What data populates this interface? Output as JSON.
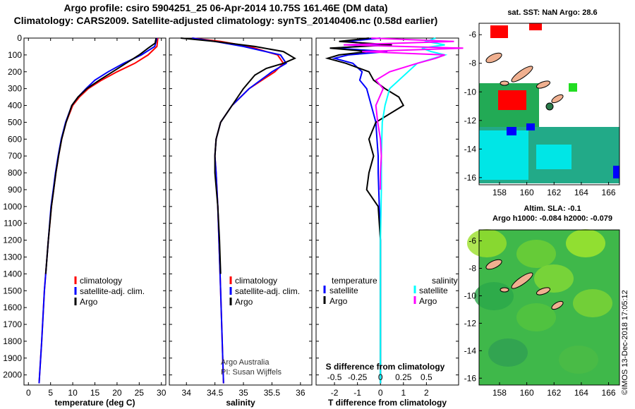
{
  "titles": {
    "line1": "Argo profile: csiro 5904251_25 06-Apr-2014 10.75S 161.46E (DM data)",
    "line2": "Climatology: CARS2009. Satellite-adjusted climatology: synTS_20140406.nc (0.58d earlier)"
  },
  "map_top": {
    "title": "sat. SST: NaN Argo: 28.6",
    "lat_ticks": [
      "-6",
      "-8",
      "-10",
      "-12",
      "-14",
      "-16"
    ],
    "lon_ticks": [
      "158",
      "160",
      "162",
      "164",
      "166"
    ]
  },
  "map_bottom": {
    "title1": "Altim. SLA: -0.1",
    "title2": "Argo h1000: -0.084 h2000: -0.079",
    "lat_ticks": [
      "-6",
      "-8",
      "-10",
      "-12",
      "-14",
      "-16"
    ],
    "lon_ticks": [
      "158",
      "160",
      "162",
      "164",
      "166"
    ]
  },
  "credit": "©IMOS 13-Dec-2018 17:05:12",
  "attribution": {
    "line1": "Argo Australia",
    "line2": "PI: Susan Wijffels"
  },
  "colors": {
    "climatology": "#ff0000",
    "satellite": "#0000ff",
    "argo": "#000000",
    "satellite_salinity": "#00ffff",
    "argo_salinity": "#ff00ff"
  },
  "chart_data": [
    {
      "type": "line",
      "xlabel": "temperature (deg C)",
      "ylabel": "",
      "xlim": [
        -1,
        31
      ],
      "ylim": [
        2060,
        0
      ],
      "x_ticks": [
        "0",
        "5",
        "10",
        "15",
        "20",
        "25",
        "30"
      ],
      "y_ticks": [
        "0",
        "100",
        "200",
        "300",
        "400",
        "500",
        "600",
        "700",
        "800",
        "900",
        "1000",
        "1100",
        "1200",
        "1300",
        "1400",
        "1500",
        "1600",
        "1700",
        "1800",
        "1900",
        "2000"
      ],
      "legend": [
        "climatology",
        "satellite-adj. clim.",
        "Argo"
      ],
      "series": [
        {
          "name": "climatology",
          "depth": [
            0,
            50,
            100,
            150,
            200,
            250,
            300,
            350,
            400,
            500,
            600,
            700,
            800,
            900,
            1000,
            1200,
            1500,
            1800,
            2050
          ],
          "values": [
            29.2,
            29,
            27,
            24,
            20,
            16.5,
            13.5,
            11.5,
            10,
            8.5,
            7.5,
            6.8,
            6.2,
            5.7,
            5.2,
            4.5,
            3.6,
            3,
            2.4
          ]
        },
        {
          "name": "satellite-adj. clim.",
          "depth": [
            0,
            50,
            100,
            150,
            200,
            250,
            300,
            350,
            400,
            500,
            600,
            700,
            800,
            900,
            1000,
            1200,
            1500,
            1800,
            2050
          ],
          "values": [
            29,
            28.5,
            25.5,
            21.5,
            18,
            15,
            13,
            11.2,
            9.8,
            8.4,
            7.4,
            6.7,
            6.1,
            5.6,
            5.1,
            4.5,
            3.6,
            3,
            2.4
          ]
        },
        {
          "name": "Argo",
          "depth": [
            0,
            30,
            60,
            100,
            150,
            200,
            250,
            300,
            350,
            400,
            500,
            600,
            700,
            800,
            900,
            1000,
            1200,
            1400
          ],
          "values": [
            28.8,
            28.6,
            27,
            25,
            22,
            19,
            16,
            13.2,
            11.2,
            9.8,
            8.5,
            7.5,
            6.8,
            6.2,
            5.7,
            5.2,
            4.5,
            3.9
          ]
        }
      ]
    },
    {
      "type": "line",
      "xlabel": "salinity",
      "ylabel": "",
      "xlim": [
        33.7,
        36.2
      ],
      "ylim": [
        2060,
        0
      ],
      "x_ticks": [
        "34",
        "34.5",
        "35",
        "35.5",
        "36"
      ],
      "legend": [
        "climatology",
        "satellite-adj. clim.",
        "Argo"
      ],
      "series": [
        {
          "name": "climatology",
          "depth": [
            0,
            20,
            50,
            100,
            150,
            200,
            300,
            400,
            500,
            600,
            700,
            800,
            1000,
            1500,
            2050
          ],
          "values": [
            34.1,
            34.6,
            35.1,
            35.6,
            35.7,
            35.55,
            35.1,
            34.8,
            34.6,
            34.52,
            34.5,
            34.52,
            34.55,
            34.6,
            34.65
          ]
        },
        {
          "name": "satellite-adj. clim.",
          "depth": [
            0,
            20,
            50,
            100,
            150,
            200,
            300,
            400,
            500,
            600,
            700,
            800,
            1000,
            1500,
            2050
          ],
          "values": [
            34.1,
            34.5,
            35.0,
            35.65,
            35.75,
            35.5,
            35.1,
            34.8,
            34.6,
            34.52,
            34.5,
            34.52,
            34.55,
            34.6,
            34.65
          ]
        },
        {
          "name": "Argo",
          "depth": [
            0,
            20,
            50,
            80,
            120,
            150,
            180,
            220,
            300,
            400,
            500,
            600,
            700,
            800,
            1000,
            1200,
            1400
          ],
          "values": [
            33.9,
            34.5,
            35.2,
            35.7,
            35.9,
            35.7,
            35.4,
            35.2,
            35.0,
            34.8,
            34.6,
            34.52,
            34.5,
            34.5,
            34.55,
            34.58,
            34.6
          ]
        }
      ]
    },
    {
      "type": "line",
      "xlabel": "T difference from climatology",
      "x2label": "S difference from climatology",
      "xlim": [
        -2.8,
        3.4
      ],
      "ylim": [
        2060,
        0
      ],
      "x_ticks": [
        "-2",
        "-1",
        "0",
        "1",
        "2"
      ],
      "x2_ticks": [
        "-0.5",
        "-0.25",
        "0",
        "0.25",
        "0.5"
      ],
      "legend_left_title": "temperature",
      "legend_right_title": "salinity",
      "legend": [
        "satellite",
        "Argo",
        "satellite",
        "Argo"
      ],
      "series": [
        {
          "name": "satellite T",
          "depth": [
            0,
            20,
            40,
            60,
            80,
            100,
            120,
            150,
            200,
            250,
            300,
            400,
            500,
            600,
            700,
            800,
            1000,
            1200,
            1500,
            2050
          ],
          "values": [
            0,
            -1.5,
            0,
            -2,
            0.3,
            -1.4,
            -2,
            -1.2,
            -0.8,
            -0.9,
            -0.6,
            -0.4,
            -0.2,
            -0.15,
            -0.1,
            -0.1,
            -0.05,
            0,
            0,
            0
          ]
        },
        {
          "name": "Argo T",
          "depth": [
            0,
            20,
            40,
            60,
            80,
            100,
            120,
            150,
            200,
            250,
            300,
            350,
            400,
            500,
            600,
            700,
            800,
            900,
            1000,
            1200,
            1400,
            1600,
            1800,
            2050
          ],
          "values": [
            -0.5,
            -1.8,
            0.5,
            -2.2,
            -0.5,
            -1.8,
            -2.3,
            -1.5,
            -0.5,
            -0.3,
            0.2,
            0.8,
            1.0,
            -0.2,
            -0.5,
            -0.3,
            -0.5,
            -0.6,
            -0.1,
            0,
            0,
            0,
            0,
            0
          ]
        },
        {
          "name": "satellite S",
          "depth": [
            0,
            20,
            40,
            60,
            80,
            100,
            150,
            200,
            300,
            400,
            500,
            700,
            900,
            1200,
            1500,
            2050
          ],
          "values": [
            0.6,
            0.5,
            0.7,
            0.45,
            0.55,
            0.7,
            0.4,
            0.3,
            0.1,
            0.05,
            0.02,
            0.01,
            0.01,
            0,
            0,
            0
          ]
        },
        {
          "name": "Argo S",
          "depth": [
            0,
            20,
            40,
            60,
            80,
            100,
            120,
            150,
            200,
            250,
            300,
            400,
            500,
            600,
            700,
            800,
            900
          ],
          "values": [
            -0.1,
            0.8,
            -0.4,
            0.9,
            -0.2,
            0.7,
            0.6,
            0.4,
            0.1,
            -0.05,
            0.03,
            -0.05,
            -0.03,
            0,
            0.01,
            0,
            0
          ]
        }
      ]
    }
  ]
}
